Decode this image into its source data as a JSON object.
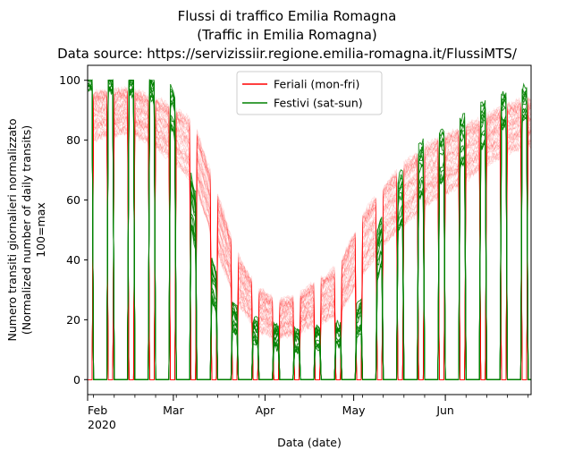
{
  "chart_data": {
    "type": "line",
    "title_lines": [
      "Flussi di traffico Emilia Romagna",
      "(Traffic in Emilia Romagna)",
      "Data source: https://servizissiir.regione.emilia-romagna.it/FlussiMTS/"
    ],
    "ylabel_lines": [
      "Numero transiti giornalieri normalizzato",
      "(Normalized number of daily transits)",
      "100=max"
    ],
    "xlabel": "Data (date)",
    "x_range": [
      "2020-02-01",
      "2020-06-30"
    ],
    "ylim": [
      -5,
      105
    ],
    "y_ticks": [
      0,
      20,
      40,
      60,
      80,
      100
    ],
    "y_tick_labels": [
      "0",
      "20",
      "40",
      "60",
      "80",
      "100"
    ],
    "x_ticks": [
      {
        "date": "2020-02-01",
        "label": "Feb",
        "sublabel": "2020"
      },
      {
        "date": "2020-03-01",
        "label": "Mar",
        "sublabel": ""
      },
      {
        "date": "2020-04-01",
        "label": "Apr",
        "sublabel": ""
      },
      {
        "date": "2020-05-01",
        "label": "May",
        "sublabel": ""
      },
      {
        "date": "2020-06-01",
        "label": "Jun",
        "sublabel": ""
      }
    ],
    "grid": false,
    "legend_position": "top-center",
    "series": [
      {
        "name": "Feriali (mon-fri)",
        "color": "#ff0000",
        "envelope": {
          "x": [
            "2020-02-01",
            "2020-02-15",
            "2020-02-24",
            "2020-03-01",
            "2020-03-08",
            "2020-03-15",
            "2020-03-22",
            "2020-03-29",
            "2020-04-05",
            "2020-04-12",
            "2020-04-19",
            "2020-04-26",
            "2020-05-04",
            "2020-05-11",
            "2020-05-18",
            "2020-05-25",
            "2020-06-01",
            "2020-06-08",
            "2020-06-15",
            "2020-06-22",
            "2020-06-29"
          ],
          "median": [
            88,
            90,
            86,
            82,
            76,
            55,
            35,
            24,
            20,
            22,
            26,
            30,
            45,
            55,
            62,
            68,
            72,
            76,
            80,
            84,
            86
          ],
          "spread": [
            8,
            7,
            8,
            9,
            10,
            10,
            8,
            7,
            6,
            6,
            7,
            8,
            10,
            10,
            10,
            10,
            10,
            9,
            8,
            8,
            8
          ]
        }
      },
      {
        "name": "Festivi (sat-sun)",
        "color": "#008000",
        "envelope": {
          "x": [
            "2020-02-01",
            "2020-02-22",
            "2020-03-01",
            "2020-03-08",
            "2020-03-15",
            "2020-03-22",
            "2020-03-29",
            "2020-04-05",
            "2020-04-12",
            "2020-04-19",
            "2020-04-26",
            "2020-05-03",
            "2020-05-10",
            "2020-05-17",
            "2020-05-24",
            "2020-05-31",
            "2020-06-07",
            "2020-06-14",
            "2020-06-21",
            "2020-06-28"
          ],
          "median": [
            100,
            98,
            90,
            55,
            30,
            20,
            16,
            14,
            13,
            14,
            15,
            20,
            45,
            60,
            70,
            75,
            80,
            85,
            90,
            92
          ],
          "spread": [
            3,
            4,
            8,
            10,
            8,
            5,
            4,
            4,
            4,
            4,
            4,
            6,
            10,
            10,
            10,
            10,
            9,
            8,
            6,
            6
          ]
        }
      }
    ]
  }
}
